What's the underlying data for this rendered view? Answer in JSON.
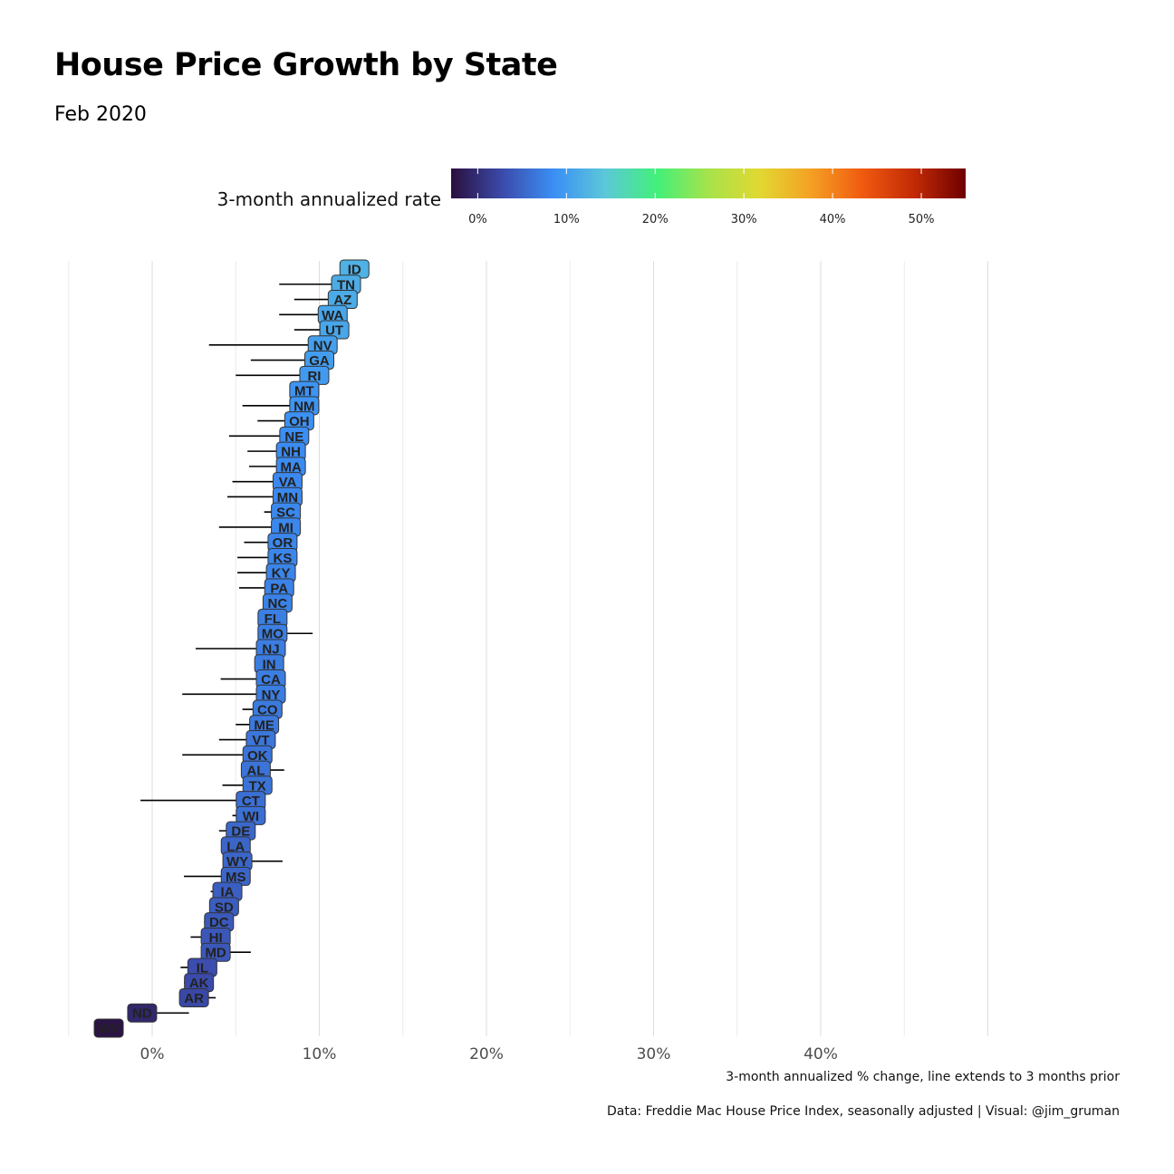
{
  "title": "House Price Growth by State",
  "subtitle": "Feb 2020",
  "legend": {
    "title": "3-month annualized rate",
    "ticks": [
      "0%",
      "10%",
      "20%",
      "30%",
      "40%",
      "50%"
    ],
    "tick_values": [
      0,
      10,
      20,
      30,
      40,
      50
    ],
    "range": [
      -3,
      55
    ],
    "colors": [
      "#2a0f3d",
      "#3b4bab",
      "#3b8ff5",
      "#5cc8d8",
      "#42f07a",
      "#a6e34a",
      "#e2d832",
      "#f4a024",
      "#f05a10",
      "#c22a05",
      "#6e0000"
    ]
  },
  "xaxis": {
    "ticks": [
      "0%",
      "10%",
      "20%",
      "30%",
      "40%"
    ],
    "tick_values": [
      0,
      10,
      20,
      30,
      40
    ],
    "label": "3-month annualized % change, line extends to 3 months prior",
    "range": [
      -5,
      50
    ]
  },
  "caption": "Data: Freddie Mac House Price Index, seasonally adjusted | Visual: @jim_gruman",
  "chart_data": {
    "type": "scatter",
    "x_unit": "%",
    "states": [
      {
        "state": "ID",
        "current": 12.1,
        "prior": 12.1
      },
      {
        "state": "TN",
        "current": 11.6,
        "prior": 7.6
      },
      {
        "state": "AZ",
        "current": 11.4,
        "prior": 8.5
      },
      {
        "state": "WA",
        "current": 10.8,
        "prior": 7.6
      },
      {
        "state": "UT",
        "current": 10.9,
        "prior": 8.5
      },
      {
        "state": "NV",
        "current": 10.2,
        "prior": 3.4
      },
      {
        "state": "GA",
        "current": 10.0,
        "prior": 5.9
      },
      {
        "state": "RI",
        "current": 9.7,
        "prior": 5.0
      },
      {
        "state": "MT",
        "current": 9.1,
        "prior": 9.1
      },
      {
        "state": "NM",
        "current": 9.1,
        "prior": 5.4
      },
      {
        "state": "OH",
        "current": 8.8,
        "prior": 6.3
      },
      {
        "state": "NE",
        "current": 8.5,
        "prior": 4.6
      },
      {
        "state": "NH",
        "current": 8.3,
        "prior": 5.7
      },
      {
        "state": "MA",
        "current": 8.3,
        "prior": 5.8
      },
      {
        "state": "VA",
        "current": 8.1,
        "prior": 4.8
      },
      {
        "state": "MN",
        "current": 8.1,
        "prior": 4.5
      },
      {
        "state": "SC",
        "current": 8.0,
        "prior": 6.7
      },
      {
        "state": "MI",
        "current": 8.0,
        "prior": 4.0
      },
      {
        "state": "OR",
        "current": 7.8,
        "prior": 5.5
      },
      {
        "state": "KS",
        "current": 7.8,
        "prior": 5.1
      },
      {
        "state": "KY",
        "current": 7.7,
        "prior": 5.1
      },
      {
        "state": "PA",
        "current": 7.6,
        "prior": 5.2
      },
      {
        "state": "NC",
        "current": 7.5,
        "prior": 7.5
      },
      {
        "state": "FL",
        "current": 7.2,
        "prior": 7.2
      },
      {
        "state": "MO",
        "current": 7.2,
        "prior": 9.6
      },
      {
        "state": "NJ",
        "current": 7.1,
        "prior": 2.6
      },
      {
        "state": "IN",
        "current": 7.0,
        "prior": 7.0
      },
      {
        "state": "CA",
        "current": 7.1,
        "prior": 4.1
      },
      {
        "state": "NY",
        "current": 7.1,
        "prior": 1.8
      },
      {
        "state": "CO",
        "current": 6.9,
        "prior": 5.4
      },
      {
        "state": "ME",
        "current": 6.7,
        "prior": 5.0
      },
      {
        "state": "VT",
        "current": 6.5,
        "prior": 4.0
      },
      {
        "state": "OK",
        "current": 6.3,
        "prior": 1.8
      },
      {
        "state": "AL",
        "current": 6.2,
        "prior": 7.9
      },
      {
        "state": "TX",
        "current": 6.3,
        "prior": 4.2
      },
      {
        "state": "CT",
        "current": 5.9,
        "prior": -0.7
      },
      {
        "state": "WI",
        "current": 5.9,
        "prior": 4.8
      },
      {
        "state": "DE",
        "current": 5.3,
        "prior": 4.0
      },
      {
        "state": "LA",
        "current": 5.0,
        "prior": 5.0
      },
      {
        "state": "WY",
        "current": 5.1,
        "prior": 7.8
      },
      {
        "state": "MS",
        "current": 5.0,
        "prior": 1.9
      },
      {
        "state": "IA",
        "current": 4.5,
        "prior": 3.5
      },
      {
        "state": "SD",
        "current": 4.3,
        "prior": 4.3
      },
      {
        "state": "DC",
        "current": 4.0,
        "prior": 3.1
      },
      {
        "state": "HI",
        "current": 3.8,
        "prior": 2.3
      },
      {
        "state": "MD",
        "current": 3.8,
        "prior": 5.9
      },
      {
        "state": "IL",
        "current": 3.0,
        "prior": 1.7
      },
      {
        "state": "AK",
        "current": 2.8,
        "prior": 1.9
      },
      {
        "state": "AR",
        "current": 2.5,
        "prior": 3.8
      },
      {
        "state": "ND",
        "current": -0.6,
        "prior": 2.2
      },
      {
        "state": "WV",
        "current": -2.6,
        "prior": -2.6
      }
    ]
  }
}
